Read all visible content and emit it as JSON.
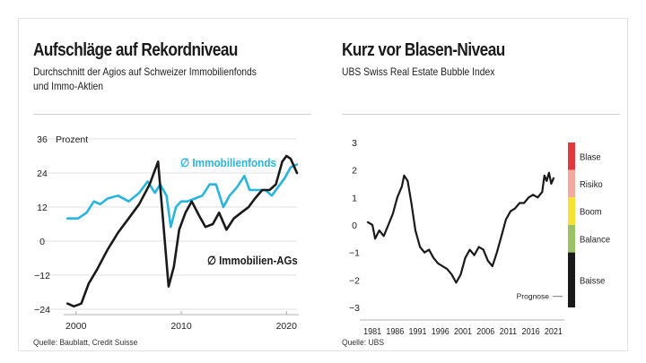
{
  "chart_data": [
    {
      "type": "line",
      "title": "Aufschläge auf Rekordniveau",
      "subtitle_lines": [
        "Durchschnitt der Agios auf Schweizer Immobilienfonds",
        "und Immo-Aktien"
      ],
      "ylabel": "Prozent",
      "ylim": [
        -24,
        36
      ],
      "yticks": [
        "36",
        "24",
        "12",
        "0",
        "−12",
        "−24"
      ],
      "yticks_values": [
        36,
        24,
        12,
        0,
        -12,
        -24
      ],
      "xlim": [
        1999,
        2021
      ],
      "xticks": [
        "2000",
        "2010",
        "2020"
      ],
      "xticks_values": [
        2000,
        2010,
        2020
      ],
      "grid": "horizontal",
      "source": "Quelle: Baublatt, Credit Suisse",
      "series": [
        {
          "name": "Immobilienfonds",
          "label": "∅ Immobilienfonds",
          "color": "#29b6de",
          "x": [
            1999.2,
            2000.2,
            2001,
            2001.7,
            2002.3,
            2003,
            2004,
            2005,
            2006,
            2006.8,
            2007.5,
            2008,
            2008.6,
            2009,
            2009.5,
            2010,
            2010.6,
            2011.3,
            2012,
            2012.7,
            2013.3,
            2014,
            2014.6,
            2015.3,
            2016,
            2016.5,
            2017.2,
            2018,
            2018.6,
            2019.2,
            2019.8,
            2020.4,
            2021
          ],
          "y": [
            8,
            8,
            10,
            14,
            13,
            15,
            16,
            14,
            17,
            21,
            17,
            20,
            16,
            5,
            12,
            14,
            14,
            15,
            16,
            20,
            20,
            12,
            16,
            19,
            23,
            18,
            18,
            18,
            16,
            19,
            22,
            26,
            27
          ]
        },
        {
          "name": "Immobilien-AGs",
          "label": "∅ Immobilien-AGs",
          "color": "#1a1a1a",
          "x": [
            1999.2,
            1999.8,
            2000.5,
            2001.2,
            2002,
            2003,
            2004,
            2005,
            2006,
            2007,
            2007.8,
            2008.3,
            2008.8,
            2009.3,
            2009.8,
            2010.4,
            2011,
            2011.7,
            2012.3,
            2013,
            2013.6,
            2014.3,
            2015,
            2015.7,
            2016.4,
            2017,
            2017.7,
            2018.4,
            2019,
            2019.6,
            2020,
            2020.4,
            2021
          ],
          "y": [
            -22,
            -23,
            -22,
            -15,
            -10,
            -3,
            3,
            8,
            13,
            20,
            28,
            6,
            -16,
            -9,
            4,
            10,
            14,
            9,
            5,
            6,
            10,
            4,
            8,
            10,
            12,
            15,
            18,
            18,
            20,
            28,
            30,
            29,
            24
          ]
        }
      ]
    },
    {
      "type": "line",
      "title": "Kurz vor Blasen-Niveau",
      "subtitle_lines": [
        "UBS Swiss Real Estate Bubble Index"
      ],
      "ylim": [
        -3,
        3
      ],
      "yticks": [
        "3",
        "2",
        "1",
        "0",
        "−1",
        "−2",
        "−3"
      ],
      "yticks_values": [
        3,
        2,
        1,
        0,
        -1,
        -2,
        -3
      ],
      "xlim": [
        1979,
        2023
      ],
      "xticks": [
        "1981",
        "1986",
        "1991",
        "1996",
        "2001",
        "2006",
        "2011",
        "2016",
        "2021"
      ],
      "xticks_values": [
        1981,
        1986,
        1991,
        1996,
        2001,
        2006,
        2011,
        2016,
        2021
      ],
      "source": "Quelle: UBS",
      "forecast_label": "Prognose",
      "zones": [
        {
          "label": "Blase",
          "from": 2,
          "to": 3,
          "color": "#e03a3e"
        },
        {
          "label": "Risiko",
          "from": 1,
          "to": 2,
          "color": "#f2aa9c"
        },
        {
          "label": "Boom",
          "from": 0,
          "to": 1,
          "color": "#f7e233"
        },
        {
          "label": "Balance",
          "from": -1,
          "to": 0,
          "color": "#9bc264"
        },
        {
          "label": "Baisse",
          "from": -3,
          "to": -1,
          "color": "#1a1a1a"
        }
      ],
      "series": [
        {
          "name": "UBS Swiss Real Estate Bubble Index",
          "color": "#1a1a1a",
          "x": [
            1980,
            1981,
            1981.6,
            1982.5,
            1983.5,
            1984.5,
            1985.5,
            1986.5,
            1987.5,
            1988,
            1988.8,
            1989.6,
            1990.5,
            1991.5,
            1992.5,
            1993.5,
            1994.5,
            1995.5,
            1996.5,
            1997.5,
            1998.5,
            1999.5,
            2000.5,
            2001.5,
            2002.5,
            2003.5,
            2004.5,
            2005.5,
            2006.5,
            2007.5,
            2008.5,
            2009.5,
            2010.5,
            2011.5,
            2012.5,
            2013.5,
            2014.5,
            2015.5,
            2016.5,
            2017.5,
            2018.5,
            2019,
            2019.5,
            2020,
            2020.5,
            2021
          ],
          "y": [
            0.1,
            0.0,
            -0.5,
            -0.2,
            -0.4,
            0.0,
            0.4,
            1.0,
            1.4,
            1.8,
            1.6,
            0.8,
            -0.2,
            -0.8,
            -1.0,
            -0.9,
            -1.2,
            -1.4,
            -1.5,
            -1.6,
            -1.8,
            -2.1,
            -1.8,
            -1.2,
            -0.9,
            -1.1,
            -0.8,
            -0.9,
            -1.3,
            -1.5,
            -1.0,
            -0.4,
            0.2,
            0.5,
            0.6,
            0.8,
            0.8,
            1.0,
            1.1,
            1.0,
            1.2,
            1.8,
            1.6,
            1.9,
            1.5,
            1.7
          ]
        }
      ]
    }
  ]
}
